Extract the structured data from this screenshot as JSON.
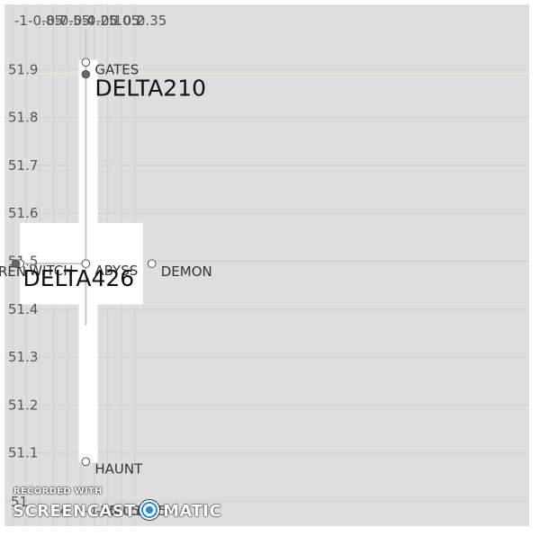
{
  "chart_data": {
    "type": "scatter",
    "title": "",
    "xlabel": "",
    "ylabel": "",
    "xlim": [
      -1,
      0.5
    ],
    "ylim": [
      51.0,
      51.97
    ],
    "x_ticks": [
      -1,
      -0.85,
      -0.7,
      -0.55,
      -0.4,
      -0.25,
      -0.1,
      0.05,
      0.2,
      0.35
    ],
    "y_ticks": [
      51.1,
      51.2,
      51.3,
      51.4,
      51.5,
      51.6,
      51.7,
      51.8,
      51.9
    ],
    "grid": true,
    "highlight_region": {
      "vertical_band": {
        "x": [
          -0.27,
          -0.06
        ],
        "y": [
          51.08,
          51.92
        ]
      },
      "horizontal_band": {
        "x": [
          -0.92,
          0.44
        ],
        "y": [
          51.41,
          51.58
        ]
      }
    },
    "points": [
      {
        "label": "GATES",
        "x": -0.192,
        "y": 51.915,
        "filled": false
      },
      {
        "label": "DELTA210",
        "x": -0.192,
        "y": 51.89,
        "filled": true,
        "big": true
      },
      {
        "label": "ABYSS",
        "x": -0.192,
        "y": 51.495,
        "filled": false
      },
      {
        "label": "WITCH",
        "x": -0.918,
        "y": 51.495,
        "filled": false
      },
      {
        "label": "REN",
        "x": -1.0,
        "y": 51.495,
        "filled": false
      },
      {
        "label": "DELTA426",
        "x": -0.965,
        "y": 51.495,
        "filled": true,
        "big": true
      },
      {
        "label": "DEMON",
        "x": 0.537,
        "y": 51.495,
        "filled": false
      },
      {
        "label": "HAUNT",
        "x": -0.192,
        "y": 51.082,
        "filled": false
      }
    ],
    "top_tick_labels": [
      "-1",
      "-0.85",
      "-0.7",
      "-0.55",
      "-0.4",
      "-0.25",
      "-0.1",
      "0.05",
      "0.2",
      "0.35"
    ],
    "bottom_tick_labels": [
      "-0.25",
      "-0.1",
      "0.05",
      "0.2",
      "0.35"
    ],
    "bottom_partial_tick": "4",
    "y_first_partial_label": "51"
  },
  "watermark": {
    "line1": "RECORDED WITH",
    "line2_a": "SCREENCAST",
    "line2_b": "MATIC"
  }
}
